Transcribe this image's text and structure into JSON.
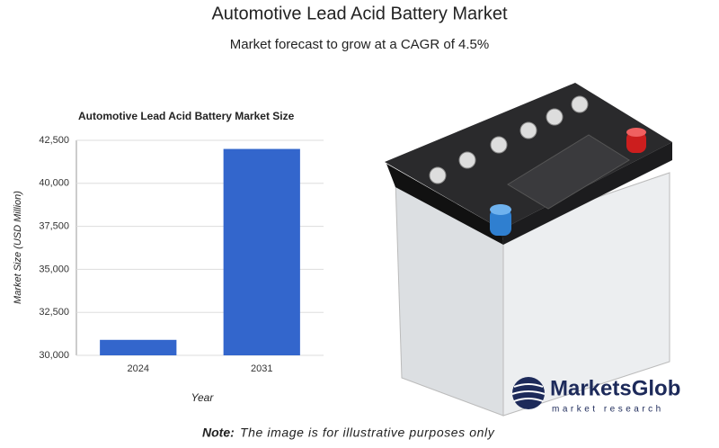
{
  "title": "Automotive Lead Acid Battery Market",
  "subtitle": "Market forecast to grow at a CAGR of 4.5%",
  "chart_data": {
    "type": "bar",
    "title": "Automotive Lead Acid Battery Market Size",
    "x_label": "Year",
    "y_label": "Market Size (USD Million)",
    "categories": [
      "2024",
      "2031"
    ],
    "values": [
      30900,
      42000
    ],
    "color": "#3366cc",
    "ylim": [
      30000,
      42500
    ],
    "yticks": [
      {
        "value": 30000,
        "label": "30,000"
      },
      {
        "value": 32500,
        "label": "32,500"
      },
      {
        "value": 35000,
        "label": "35,000"
      },
      {
        "value": 37500,
        "label": "37,500"
      },
      {
        "value": 40000,
        "label": "40,000"
      },
      {
        "value": 42500,
        "label": "42,500"
      }
    ],
    "grid": true
  },
  "note": {
    "label": "Note:",
    "text": "The image is for illustrative purposes only"
  },
  "logo": {
    "name": "MarketsGlob",
    "tagline": "market research"
  }
}
